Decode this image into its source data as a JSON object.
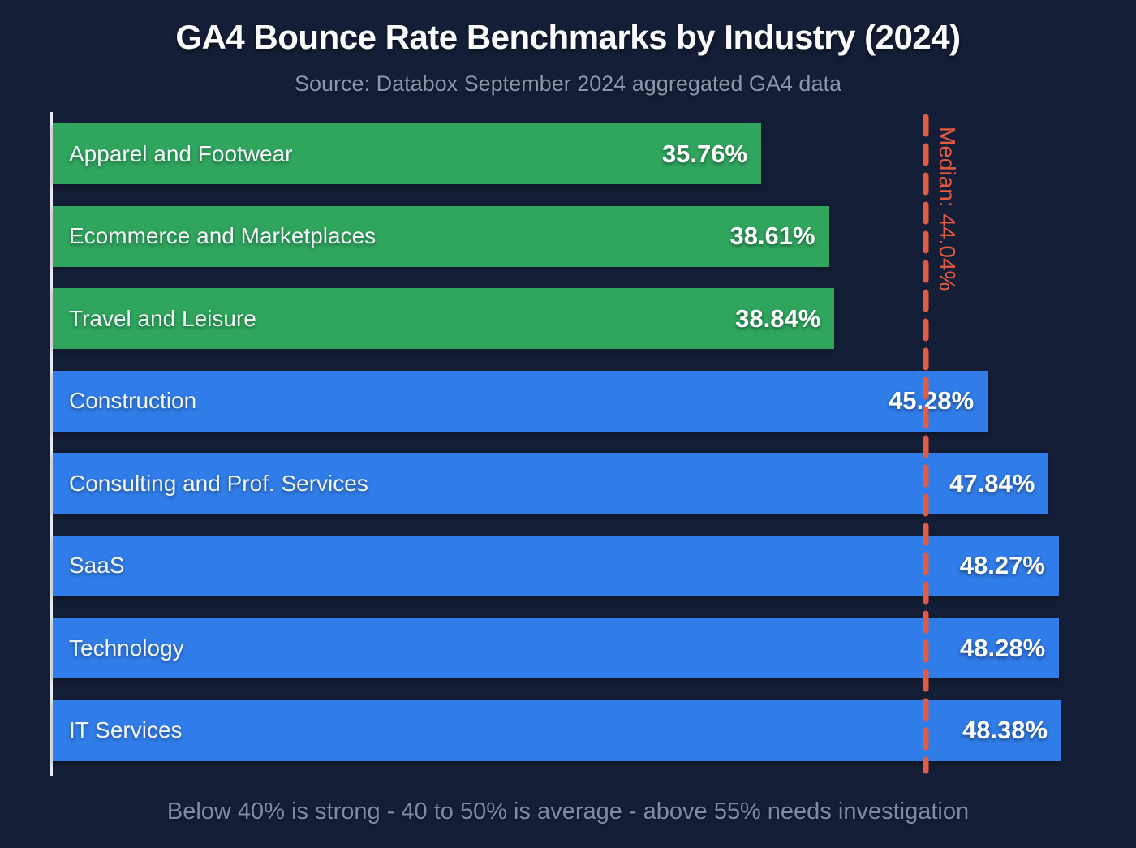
{
  "page": {
    "title": "GA4 Bounce Rate Benchmarks by Industry (2024)",
    "subtitle": "Source: Databox September 2024 aggregated GA4 data",
    "footer_note": "Below 40% is strong - 40 to 50% is average - above 55% needs investigation"
  },
  "colors": {
    "background": "#141e36",
    "bar_green": "#2fa55d",
    "bar_blue": "#307ce8",
    "median_accent": "#e25b42",
    "axis_line": "#e8ebf1",
    "title_text": "#fafbfd",
    "subtitle_text": "#8c96ab",
    "footer_text": "#7f8ba5",
    "bar_label_text": "#f2f5f9",
    "bar_value_text": "#ffffff"
  },
  "median": {
    "label": "Median: 44.04%",
    "value": 44.04
  },
  "chart_data": {
    "type": "bar",
    "orientation": "horizontal",
    "title": "GA4 Bounce Rate Benchmarks by Industry (2024)",
    "subtitle": "Source: Databox September 2024 aggregated GA4 data",
    "categories": [
      "Apparel and Footwear",
      "Ecommerce and Marketplaces",
      "Travel and Leisure",
      "Construction",
      "Consulting and Prof. Services",
      "SaaS",
      "Technology",
      "IT Services"
    ],
    "values": [
      35.76,
      38.61,
      38.84,
      45.28,
      47.84,
      48.27,
      48.28,
      48.38
    ],
    "value_labels": [
      "35.76%",
      "38.61%",
      "38.84%",
      "45.28%",
      "47.84%",
      "48.27%",
      "48.28%",
      "48.38%"
    ],
    "bar_color_keys": [
      "green",
      "green",
      "green",
      "blue",
      "blue",
      "blue",
      "blue",
      "blue"
    ],
    "xlim": [
      6,
      49.5
    ],
    "grid": false,
    "legend": false,
    "annotations": [
      {
        "type": "vline",
        "label": "Median: 44.04%",
        "value": 44.04
      }
    ],
    "note": "Below 40% is strong - 40 to 50% is average - above 55% needs investigation"
  }
}
